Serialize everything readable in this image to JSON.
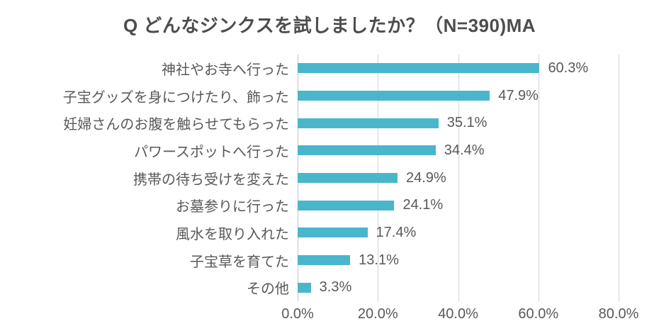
{
  "chart_data": {
    "type": "bar",
    "orientation": "horizontal",
    "title": "Q どんなジンクスを試しましたか？（N=390)MA",
    "categories": [
      "神社やお寺へ行った",
      "子宝グッズを身につけたり、飾った",
      "妊婦さんのお腹を触らせてもらった",
      "パワースポットへ行った",
      "携帯の待ち受けを変えた",
      "お墓参りに行った",
      "風水を取り入れた",
      "子宝草を育てた",
      "その他"
    ],
    "values": [
      60.3,
      47.9,
      35.1,
      34.4,
      24.9,
      24.1,
      17.4,
      13.1,
      3.3
    ],
    "value_labels": [
      "60.3%",
      "47.9%",
      "35.1%",
      "34.4%",
      "24.9%",
      "24.1%",
      "17.4%",
      "13.1%",
      "3.3%"
    ],
    "x_ticks": [
      {
        "label": "0.0%",
        "value": 0
      },
      {
        "label": "20.0%",
        "value": 20
      },
      {
        "label": "40.0%",
        "value": 40
      },
      {
        "label": "60.0%",
        "value": 60
      },
      {
        "label": "80.0%",
        "value": 80
      }
    ],
    "xlim": [
      0,
      80
    ],
    "grid": true,
    "legend": "none",
    "colors": {
      "bar": "#49b6cc",
      "gridline": "#d4d4d4",
      "axis_line": "#c4c4c4",
      "text": "#595959",
      "title_text": "#4d4d4d"
    }
  }
}
